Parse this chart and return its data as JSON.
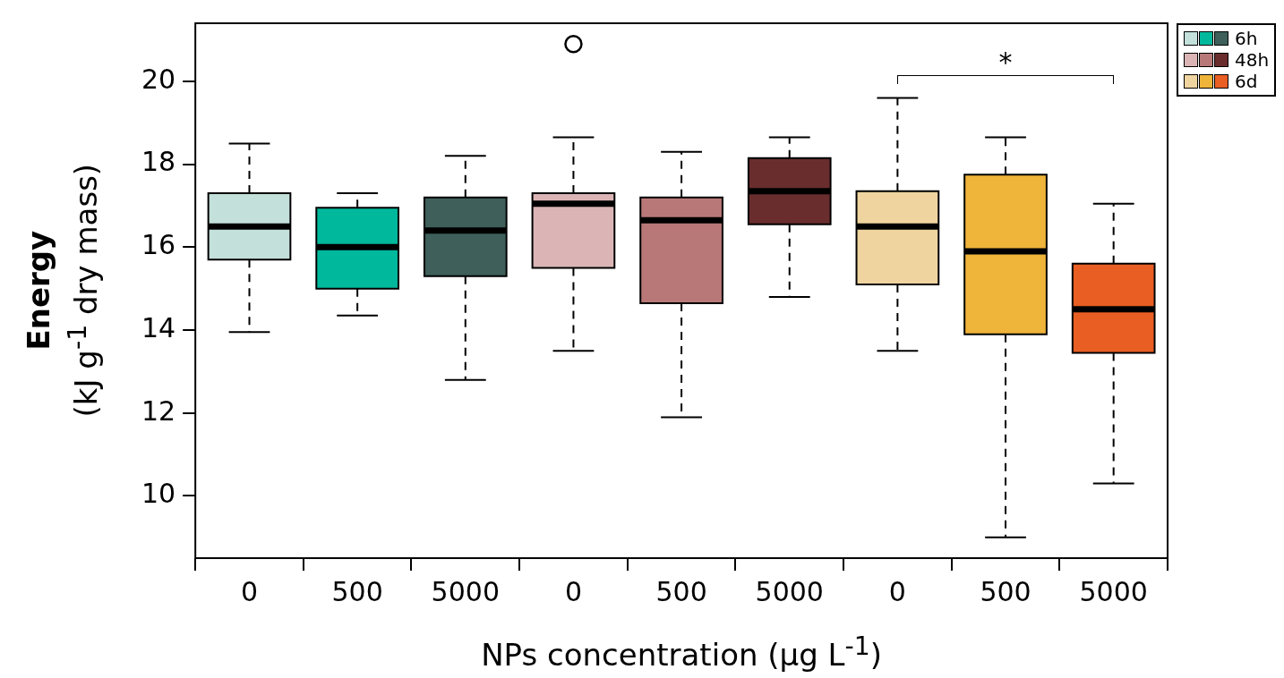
{
  "chart_data": {
    "type": "box",
    "xlabel": "NPs concentration (μg L$^{-1}$)",
    "ylabel": "Energy\n(kJ g$^{-1}$ dry mass)",
    "categories": [
      "0",
      "500",
      "5000",
      "0",
      "500",
      "5000",
      "0",
      "500",
      "5000"
    ],
    "ylim": [
      8.5,
      21.4
    ],
    "yticks": [
      10,
      12,
      14,
      16,
      18,
      20
    ],
    "legend": "top right",
    "annotations": [
      "*"
    ],
    "series": [
      {
        "name": "6h",
        "colors": [
          "#c3e0da",
          "#00b89c",
          "#3e5f5a",
          null,
          null,
          null,
          null,
          null,
          null
        ],
        "boxes": [
          {
            "low": 13.95,
            "q1": 15.7,
            "median": 16.5,
            "q3": 17.3,
            "high": 18.5
          },
          {
            "low": 14.35,
            "q1": 15.0,
            "median": 16.0,
            "q3": 16.95,
            "high": 17.3
          },
          {
            "low": 12.8,
            "q1": 15.3,
            "median": 16.4,
            "q3": 17.2,
            "high": 18.2
          },
          null,
          null,
          null,
          null,
          null,
          null
        ]
      },
      {
        "name": "48h",
        "colors": [
          null,
          null,
          null,
          "#dbb5b5",
          "#b97878",
          "#6a2d2d",
          null,
          null,
          null
        ],
        "boxes": [
          null,
          null,
          null,
          {
            "low": 13.5,
            "q1": 15.5,
            "median": 17.05,
            "q3": 17.3,
            "high": 18.65,
            "outliers": [
              20.9
            ]
          },
          {
            "low": 11.9,
            "q1": 14.65,
            "median": 16.65,
            "q3": 17.2,
            "high": 18.3
          },
          {
            "low": 14.8,
            "q1": 16.55,
            "median": 17.35,
            "q3": 18.15,
            "high": 18.65
          },
          null,
          null,
          null
        ]
      },
      {
        "name": "6d",
        "colors": [
          null,
          null,
          null,
          null,
          null,
          null,
          "#efd49f",
          "#efb43a",
          "#e85e23"
        ],
        "boxes": [
          null,
          null,
          null,
          null,
          null,
          null,
          {
            "low": 13.5,
            "q1": 15.1,
            "median": 16.5,
            "q3": 17.35,
            "high": 19.6
          },
          {
            "low": 9.0,
            "q1": 13.9,
            "median": 15.9,
            "q3": 17.75,
            "high": 18.65
          },
          {
            "low": 10.3,
            "q1": 13.45,
            "median": 14.5,
            "q3": 15.6,
            "high": 17.05
          }
        ]
      }
    ]
  }
}
